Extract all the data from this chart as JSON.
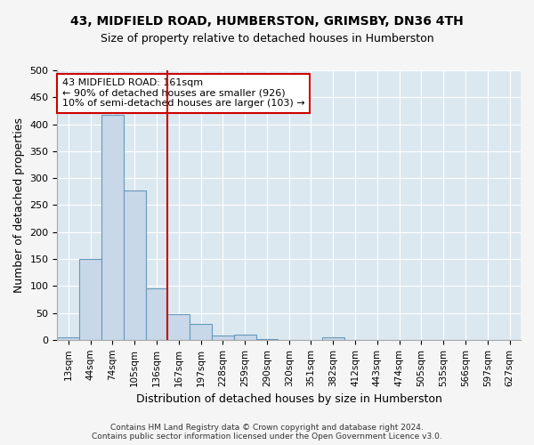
{
  "title1": "43, MIDFIELD ROAD, HUMBERSTON, GRIMSBY, DN36 4TH",
  "title2": "Size of property relative to detached houses in Humberston",
  "xlabel": "Distribution of detached houses by size in Humberston",
  "ylabel": "Number of detached properties",
  "footer1": "Contains HM Land Registry data © Crown copyright and database right 2024.",
  "footer2": "Contains public sector information licensed under the Open Government Licence v3.0.",
  "bins": [
    "13sqm",
    "44sqm",
    "74sqm",
    "105sqm",
    "136sqm",
    "167sqm",
    "197sqm",
    "228sqm",
    "259sqm",
    "290sqm",
    "320sqm",
    "351sqm",
    "382sqm",
    "412sqm",
    "443sqm",
    "474sqm",
    "505sqm",
    "535sqm",
    "566sqm",
    "597sqm",
    "627sqm"
  ],
  "values": [
    4,
    150,
    418,
    277,
    96,
    48,
    29,
    8,
    10,
    1,
    0,
    0,
    4,
    0,
    0,
    0,
    0,
    0,
    0,
    0,
    0
  ],
  "bar_color": "#c8d8e8",
  "bar_edge_color": "#6699bb",
  "vline_x_index": 5,
  "vline_color": "#cc0000",
  "annotation_text": "43 MIDFIELD ROAD: 161sqm\n← 90% of detached houses are smaller (926)\n10% of semi-detached houses are larger (103) →",
  "annotation_box_color": "#ffffff",
  "annotation_box_edge_color": "#cc0000",
  "ylim": [
    0,
    500
  ],
  "fig_bg_color": "#f5f5f5",
  "plot_bg_color": "#dce8f0"
}
